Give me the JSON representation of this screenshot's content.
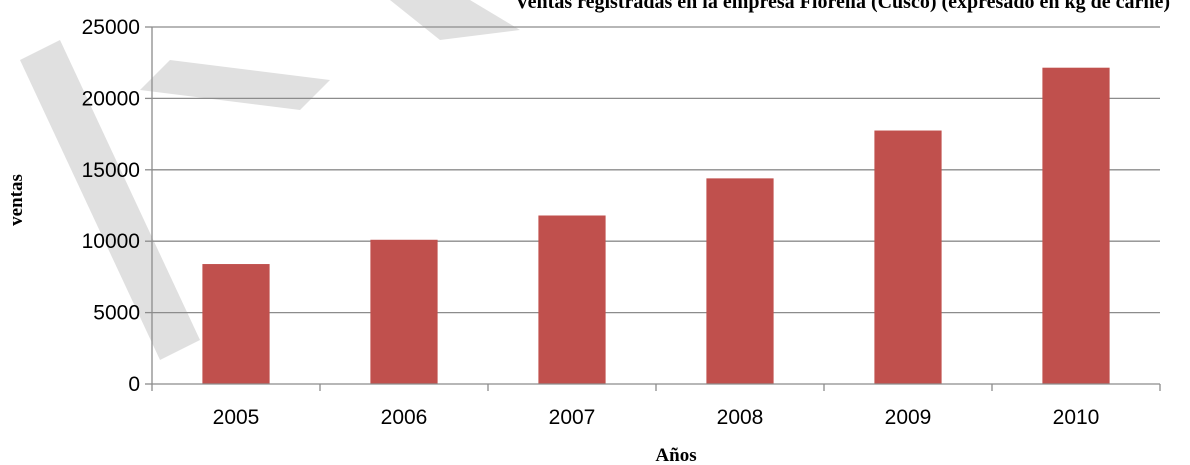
{
  "chart_data": {
    "type": "bar",
    "title": "Ventas registradas en la empresa Fiorella (Cusco) (expresado en kg de carne)",
    "xlabel": "Años",
    "ylabel": "ventas",
    "categories": [
      "2005",
      "2006",
      "2007",
      "2008",
      "2009",
      "2010"
    ],
    "values": [
      8400,
      10100,
      11800,
      14400,
      17750,
      22150
    ],
    "ylim": [
      0,
      25000
    ],
    "yticks": [
      "0",
      "5000",
      "10000",
      "15000",
      "20000",
      "25000"
    ],
    "grid": true,
    "legend": "none",
    "colors": {
      "bar": "#C0504D",
      "grid": "#8c8c8c",
      "axis": "#8c8c8c",
      "watermark": "#e0e0e0"
    }
  }
}
